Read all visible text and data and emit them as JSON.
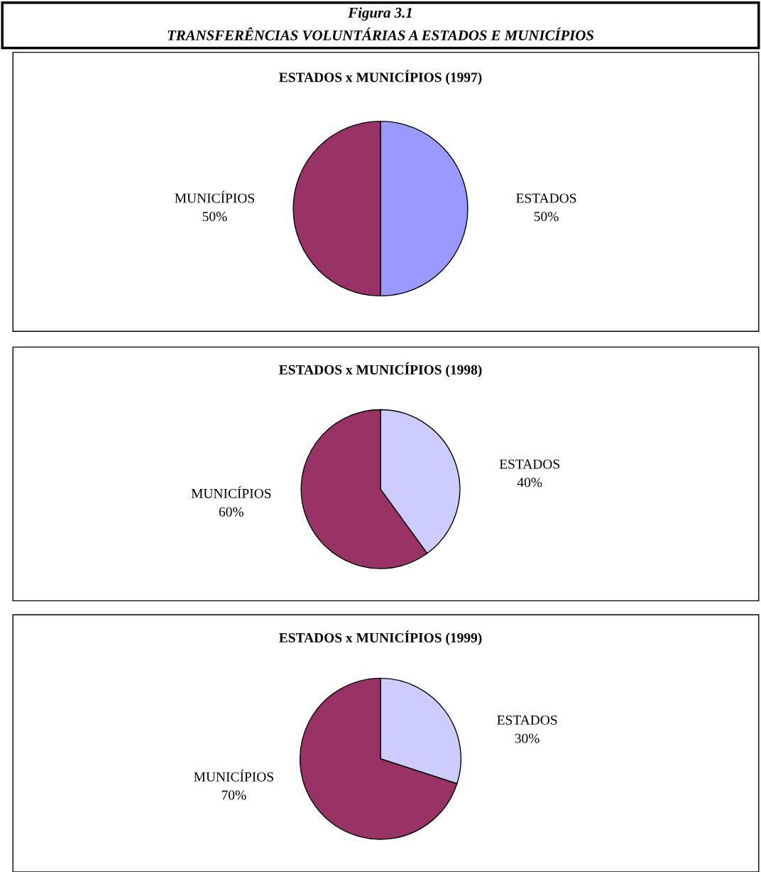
{
  "chart_data": [
    {
      "type": "pie",
      "title": "ESTADOS x MUNICÍPIOS (1997)",
      "annotations": [
        "Figura 3.1",
        "TRANSFERÊNCIAS VOLUNTÁRIAS A ESTADOS E MUNICÍPIOS"
      ],
      "categories": [
        "ESTADOS",
        "MUNICÍPIOS"
      ],
      "values": [
        50,
        50
      ],
      "colors": [
        "#9999ff",
        "#993366"
      ],
      "value_labels": [
        "50%",
        "50%"
      ]
    },
    {
      "type": "pie",
      "title": "ESTADOS x MUNICÍPIOS (1998)",
      "categories": [
        "ESTADOS",
        "MUNICÍPIOS"
      ],
      "values": [
        40,
        60
      ],
      "colors": [
        "#ccccff",
        "#993366"
      ],
      "value_labels": [
        "40%",
        "60%"
      ]
    },
    {
      "type": "pie",
      "title": "ESTADOS x MUNICÍPIOS (1999)",
      "categories": [
        "ESTADOS",
        "MUNICÍPIOS"
      ],
      "values": [
        30,
        70
      ],
      "colors": [
        "#ccccff",
        "#993366"
      ],
      "value_labels": [
        "30%",
        "70%"
      ]
    }
  ]
}
